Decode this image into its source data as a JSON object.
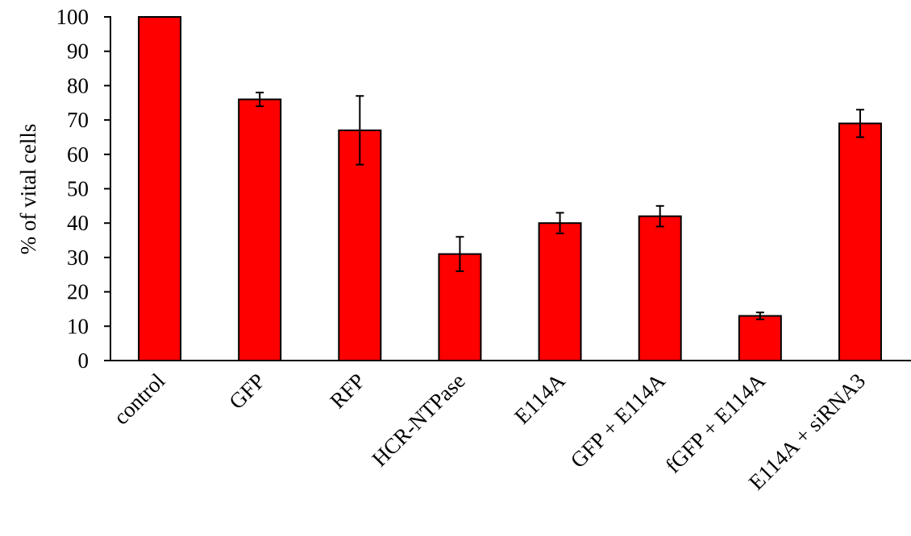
{
  "chart_data": {
    "type": "bar",
    "title": "",
    "xlabel": "",
    "ylabel": "% of vital cells",
    "ylim": [
      0,
      100
    ],
    "yticks": [
      0,
      10,
      20,
      30,
      40,
      50,
      60,
      70,
      80,
      90,
      100
    ],
    "grid": false,
    "legend": "none",
    "categories": [
      "control",
      "GFP",
      "RFP",
      "HCR-NTPase",
      "E114A",
      "GFP + E114A",
      "fGFP + E114A",
      "E114A + siRNA3"
    ],
    "series": [
      {
        "values": [
          100,
          76,
          67,
          31,
          40,
          42,
          13,
          69
        ],
        "errors": [
          0,
          2,
          10,
          5,
          3,
          3,
          1,
          4
        ],
        "color": "#ff0000"
      }
    ]
  }
}
